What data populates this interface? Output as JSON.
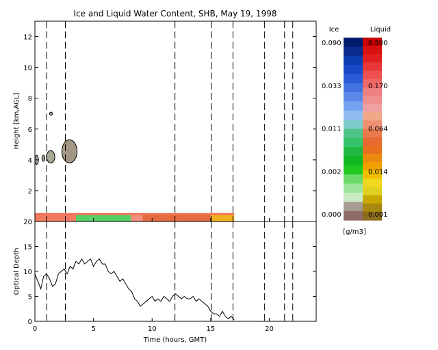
{
  "chart_data": [
    {
      "type": "heatmap",
      "title": "Ice and Liquid Water Content, SHB, May 19, 1998",
      "xlabel": "",
      "ylabel": "Height [km,AGL]",
      "xlim": [
        0,
        24
      ],
      "ylim": [
        0,
        13
      ],
      "x_ticks": [
        "0",
        "5",
        "10",
        "15",
        "20"
      ],
      "y_ticks": [
        "2",
        "4",
        "6",
        "8",
        "10",
        "12"
      ],
      "dashed_event_lines_hours": [
        1.0,
        2.6,
        11.95,
        15.05,
        16.9,
        19.6,
        21.3,
        22.0
      ],
      "ice_clouds": [
        {
          "x": [
            0.0,
            0.3
          ],
          "y": [
            3.7,
            4.3
          ]
        },
        {
          "x": [
            0.6,
            0.85
          ],
          "y": [
            3.9,
            4.3
          ]
        },
        {
          "x": [
            1.0,
            1.7
          ],
          "y": [
            3.8,
            4.6
          ]
        },
        {
          "x": [
            1.25,
            1.5
          ],
          "y": [
            6.9,
            7.1
          ]
        },
        {
          "x": [
            2.3,
            3.6
          ],
          "y": [
            3.8,
            5.3
          ]
        }
      ],
      "liquid_layer": {
        "x": [
          0.0,
          17.0
        ],
        "y": [
          0.0,
          0.55
        ]
      },
      "colorbar": {
        "ice_label": "Ice",
        "liquid_label": "Liquid",
        "unit": "[g/m3]",
        "ice_ticks": [
          "0.090",
          "0.033",
          "0.011",
          "0.002",
          "0.000"
        ],
        "liquid_ticks": [
          "0.500",
          "0.170",
          "0.064",
          "0.014",
          "0.001"
        ],
        "ice_colors": [
          "#001a6e",
          "#0a2a90",
          "#0c3cb0",
          "#1848c8",
          "#2a5ad8",
          "#4272e0",
          "#5c8ae8",
          "#76a2ee",
          "#8ebcf2",
          "#7ccccc",
          "#4ec488",
          "#36c46a",
          "#22b840",
          "#0eb820",
          "#20c820",
          "#6ed86a",
          "#9ee49c",
          "#c8ecc4",
          "#a89c94",
          "#906c68"
        ],
        "liquid_colors": [
          "#c80000",
          "#d81010",
          "#e02020",
          "#e83838",
          "#ee5050",
          "#f06868",
          "#f08080",
          "#f09090",
          "#f0a0a0",
          "#f0a888",
          "#f09070",
          "#ec7a50",
          "#e86a30",
          "#e87020",
          "#ec8a10",
          "#f0a000",
          "#f0c000",
          "#f0d820",
          "#e0d020",
          "#c8a800",
          "#a88810",
          "#8c6c1c"
        ]
      }
    },
    {
      "type": "line",
      "xlabel": "Time (hours, GMT)",
      "ylabel": "Optical Depth",
      "xlim": [
        0,
        24
      ],
      "ylim": [
        0,
        20
      ],
      "x_ticks": [
        "0",
        "5",
        "10",
        "15",
        "20"
      ],
      "y_ticks": [
        "0",
        "5",
        "10",
        "15",
        "20"
      ],
      "series": [
        {
          "x": [
            0.0,
            0.25,
            0.5,
            0.75,
            1.0,
            1.25,
            1.5,
            1.75,
            2.0,
            2.25,
            2.5,
            2.75,
            3.0,
            3.25,
            3.5,
            3.75,
            4.0,
            4.25,
            4.5,
            4.75,
            5.0,
            5.25,
            5.5,
            5.75,
            6.0,
            6.25,
            6.5,
            6.75,
            7.0,
            7.25,
            7.5,
            7.75,
            8.0,
            8.25,
            8.5,
            8.75,
            9.0,
            9.25,
            9.5,
            9.75,
            10.0,
            10.25,
            10.5,
            10.75,
            11.0,
            11.25,
            11.5,
            11.75,
            12.0,
            12.25,
            12.5,
            12.75,
            13.0,
            13.25,
            13.5,
            13.75,
            14.0,
            14.25,
            14.5,
            14.75,
            15.0,
            15.25,
            15.5,
            15.75,
            16.0,
            16.25,
            16.5,
            16.75,
            17.0
          ],
          "y": [
            9.5,
            8.0,
            6.5,
            9.0,
            9.5,
            8.5,
            7.0,
            7.5,
            9.5,
            10.0,
            10.5,
            9.5,
            11.0,
            10.5,
            12.0,
            11.5,
            12.5,
            11.5,
            12.0,
            12.5,
            11.0,
            12.0,
            12.5,
            11.5,
            11.5,
            10.0,
            9.5,
            10.0,
            9.0,
            8.0,
            8.5,
            7.5,
            6.5,
            6.0,
            4.5,
            4.0,
            3.0,
            3.5,
            4.0,
            4.5,
            5.0,
            4.0,
            4.5,
            4.0,
            5.0,
            4.5,
            4.0,
            5.0,
            5.5,
            5.0,
            4.5,
            5.0,
            4.5,
            4.5,
            5.0,
            4.0,
            4.5,
            4.0,
            3.5,
            3.0,
            2.0,
            1.5,
            1.5,
            1.0,
            2.0,
            1.0,
            0.5,
            1.0,
            0.3
          ]
        }
      ]
    }
  ]
}
